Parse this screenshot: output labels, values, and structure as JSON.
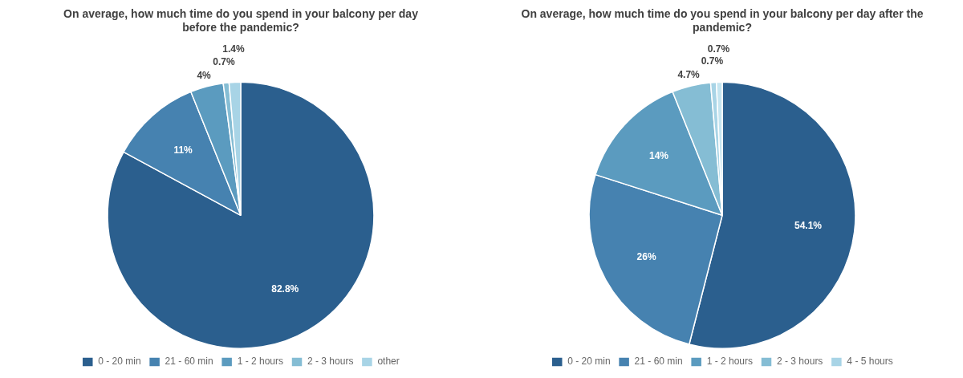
{
  "chart_data": [
    {
      "type": "pie",
      "title": "On average, how much time do you spend in your balcony per day\nbefore the pandemic?",
      "categories": [
        "0 - 20 min",
        "21 - 60 min",
        "1 - 2 hours",
        "2 - 3 hours",
        "other"
      ],
      "values": [
        82.8,
        11.0,
        4.0,
        0.7,
        1.4
      ],
      "value_labels": [
        "82.8%",
        "11%",
        "4%",
        "0.7%",
        "1.4%"
      ],
      "colors": [
        "#2B5F8E",
        "#4682B0",
        "#5B9BBF",
        "#85BDD4",
        "#A8D4E6"
      ],
      "data_labels": true,
      "legend": "bottom"
    },
    {
      "type": "pie",
      "title": "On average, how much time do you spend in your balcony per day after the\npandemic?",
      "categories": [
        "0 - 20 min",
        "21 - 60 min",
        "1 - 2 hours",
        "2 - 3 hours",
        "4 - 5 hours",
        null
      ],
      "values": [
        54.1,
        26.0,
        14.0,
        4.7,
        0.7,
        0.7
      ],
      "value_labels": [
        "54.1%",
        "26%",
        "14%",
        "4.7%",
        "0.7%",
        "0.7%"
      ],
      "colors": [
        "#2B5F8E",
        "#4682B0",
        "#5B9BBF",
        "#85BDD4",
        "#A8D4E6",
        "#C5E5F0"
      ],
      "data_labels": true,
      "legend": "bottom"
    }
  ]
}
